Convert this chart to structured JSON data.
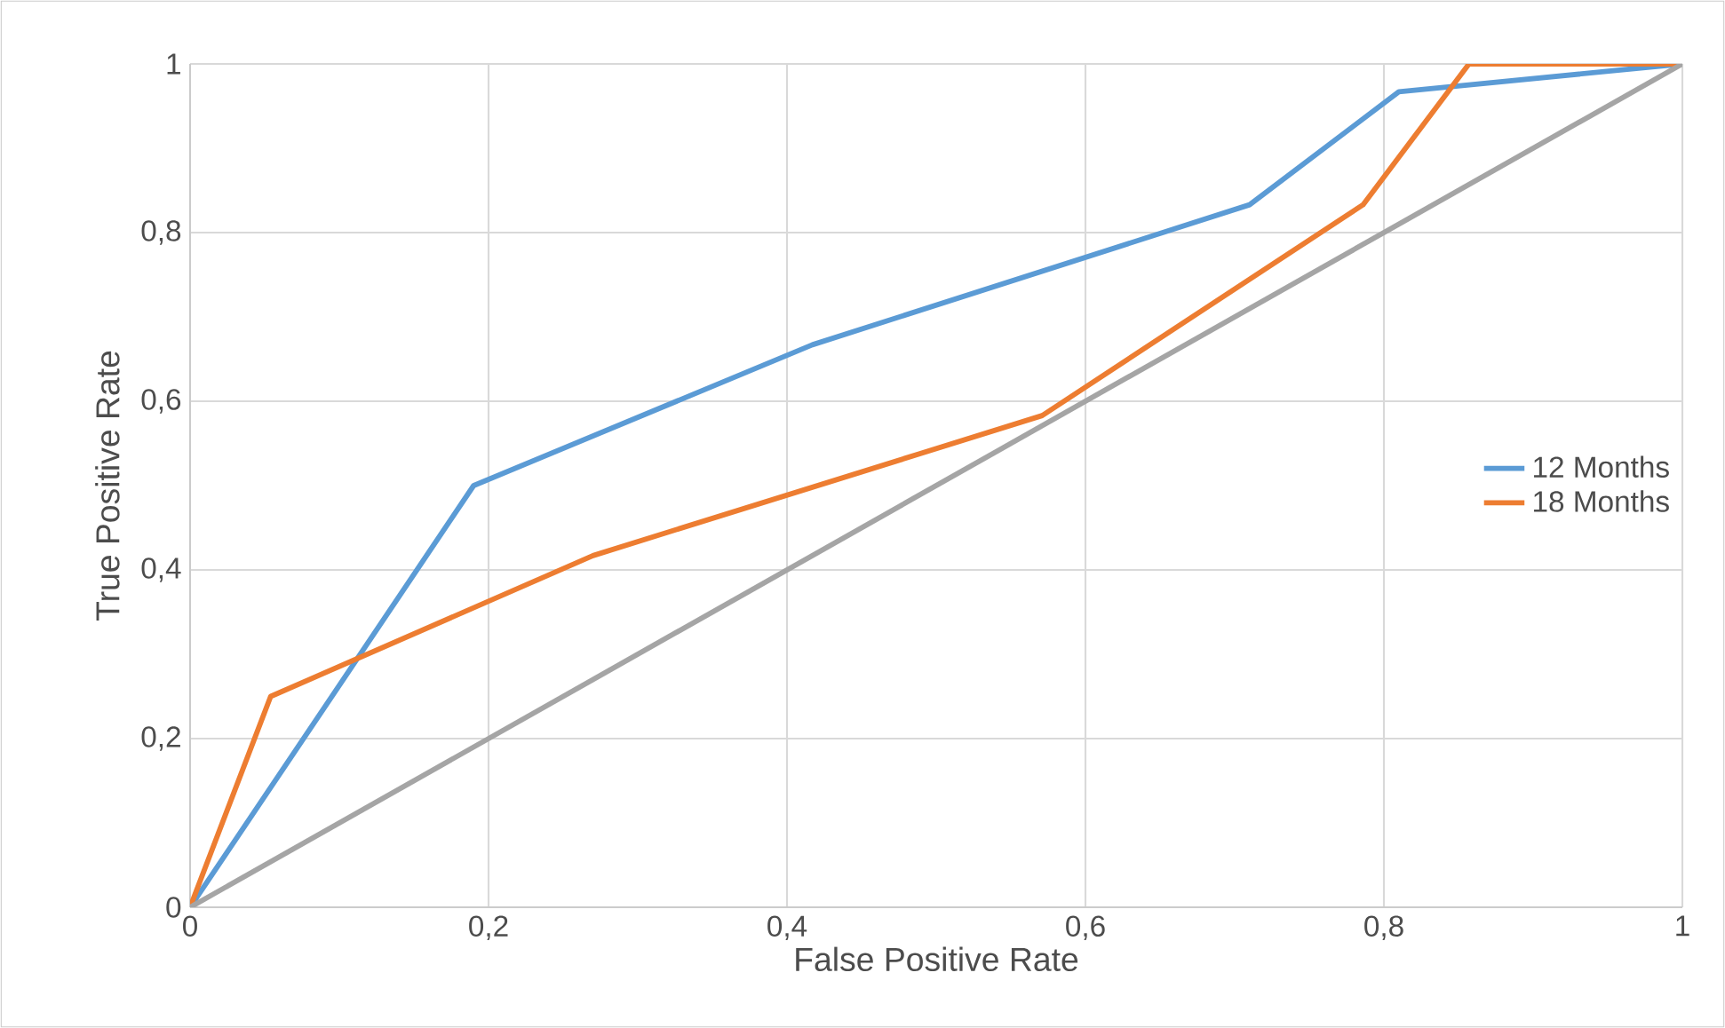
{
  "chart_data": {
    "type": "line",
    "xlabel": "False Positive Rate",
    "ylabel": "True Positive Rate",
    "series": [
      {
        "name": "12 Months",
        "color": "#5b9bd5",
        "x": [
          0,
          0.19,
          0.417,
          0.71,
          0.81,
          1
        ],
        "values": [
          0,
          0.5,
          0.667,
          0.833,
          0.967,
          1
        ]
      },
      {
        "name": "18 Months",
        "color": "#ed7d31",
        "x": [
          0,
          0.054,
          0.27,
          0.571,
          0.786,
          0.857,
          1
        ],
        "values": [
          0,
          0.25,
          0.417,
          0.583,
          0.833,
          1,
          1
        ]
      },
      {
        "color": "#a5a5a5",
        "x": [
          0,
          1
        ],
        "values": [
          0,
          1
        ]
      }
    ],
    "xlim": [
      0,
      1
    ],
    "ylim": [
      0,
      1
    ],
    "xticks": [
      0,
      {
        "value": 0.2,
        "label": "0,2"
      },
      {
        "value": 0.4,
        "label": "0,4"
      },
      {
        "value": 0.6,
        "label": "0,6"
      },
      {
        "value": 0.8,
        "label": "0,8"
      },
      1
    ],
    "yticks": [
      0,
      {
        "value": 0.2,
        "label": "0,2"
      },
      {
        "value": 0.4,
        "label": "0,4"
      },
      {
        "value": 0.6,
        "label": "0,6"
      },
      {
        "value": 0.8,
        "label": "0,8"
      },
      1
    ],
    "grid": true,
    "legend": "right",
    "marker": "none",
    "line_style": "solid"
  }
}
